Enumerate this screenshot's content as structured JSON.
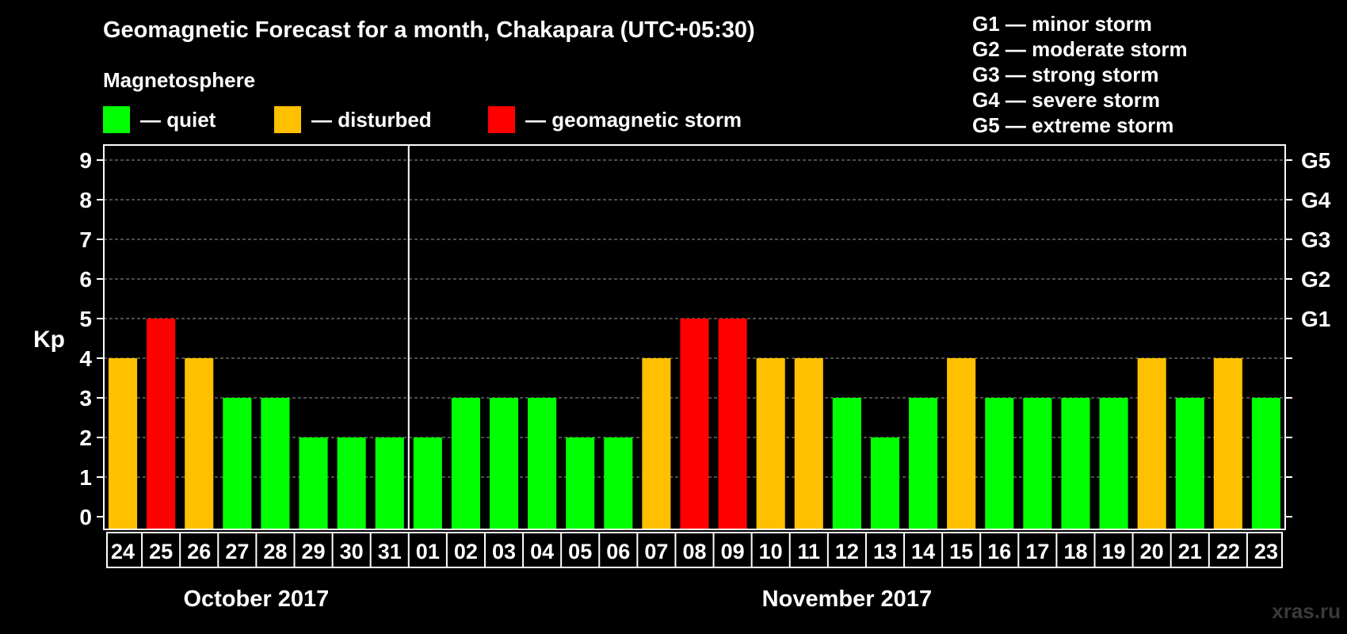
{
  "title": "Geomagnetic Forecast for a month, Chakapara (UTC+05:30)",
  "legend": {
    "heading": "Magnetosphere",
    "items": [
      {
        "label": "— quiet",
        "color": "#00ff00"
      },
      {
        "label": "— disturbed",
        "color": "#ffc000"
      },
      {
        "label": "— geomagnetic storm",
        "color": "#ff0000"
      }
    ]
  },
  "g_scale": [
    "G1 — minor storm",
    "G2 — moderate storm",
    "G3 — strong storm",
    "G4 — severe storm",
    "G5 — extreme storm"
  ],
  "watermark": "xras.ru",
  "chart_data": {
    "type": "bar",
    "ylabel": "Kp",
    "ylim": [
      0,
      9
    ],
    "yticks": [
      "0",
      "1",
      "2",
      "3",
      "4",
      "5",
      "6",
      "7",
      "8",
      "9"
    ],
    "right_ticks": [
      {
        "value": 5,
        "label": "G1"
      },
      {
        "value": 6,
        "label": "G2"
      },
      {
        "value": 7,
        "label": "G3"
      },
      {
        "value": 8,
        "label": "G4"
      },
      {
        "value": 9,
        "label": "G5"
      }
    ],
    "grid": "dashed horizontal",
    "categories": [
      "24",
      "25",
      "26",
      "27",
      "28",
      "29",
      "30",
      "31",
      "01",
      "02",
      "03",
      "04",
      "05",
      "06",
      "07",
      "08",
      "09",
      "10",
      "11",
      "12",
      "13",
      "14",
      "15",
      "16",
      "17",
      "18",
      "19",
      "20",
      "21",
      "22",
      "23"
    ],
    "values": [
      4,
      5,
      4,
      3,
      3,
      2,
      2,
      2,
      2,
      3,
      3,
      3,
      2,
      2,
      4,
      5,
      5,
      4,
      4,
      3,
      2,
      3,
      4,
      3,
      3,
      3,
      3,
      4,
      3,
      4,
      3
    ],
    "colors": {
      "quiet": "#00ff00",
      "disturbed": "#ffc000",
      "storm": "#ff0000"
    },
    "month_labels": [
      {
        "label": "October 2017",
        "from_index": 0,
        "to_index": 7
      },
      {
        "label": "November 2017",
        "from_index": 8,
        "to_index": 30
      }
    ],
    "month_divider_before_index": 8
  }
}
